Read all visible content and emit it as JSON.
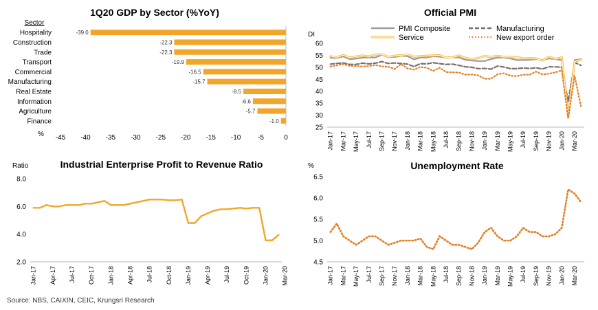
{
  "source": "Source: NBS, CAIXIN, CEIC, Krungsri Research",
  "chart_data": [
    {
      "type": "bar",
      "title": "1Q20 GDP by Sector  (%YoY)",
      "category_header": "Sector",
      "ylabel": "%",
      "categories": [
        "Hospitality",
        "Construction",
        "Trade",
        "Transport",
        "Commercial",
        "Manufacturing",
        "Real Estate",
        "Information",
        "Agriculture",
        "Finance"
      ],
      "values": [
        -39.0,
        -22.3,
        -22.3,
        -19.9,
        -16.5,
        -15.7,
        -8.5,
        -6.6,
        -5.7,
        -1.0
      ],
      "data_labels": [
        "-39.0",
        "-22.3",
        "-22.3",
        "-19.9",
        "-16.5",
        "-15.7",
        "-8.5",
        "-6.6",
        "-5.7",
        "-1.0"
      ],
      "xlim": [
        -45,
        0
      ],
      "xticks": [
        "-45",
        "-40",
        "-35",
        "-30",
        "-25",
        "-20",
        "-15",
        "-10",
        "-5",
        "0"
      ],
      "color": "#f2a629"
    },
    {
      "type": "line",
      "title": "Official PMI",
      "ylabel": "DI",
      "ylim": [
        25,
        60
      ],
      "yticks": [
        "25",
        "30",
        "35",
        "40",
        "45",
        "50",
        "55",
        "60"
      ],
      "xticks": [
        "Jan-17",
        "Mar-17",
        "May-17",
        "Jul-17",
        "Sep-17",
        "Nov-17",
        "Jan-18",
        "Mar-18",
        "May-18",
        "Jul-18",
        "Sep-18",
        "Nov-18",
        "Jan-19",
        "Mar-19",
        "May-19",
        "Jul-19",
        "Sep-19",
        "Nov-19",
        "Jan-20",
        "Mar-20"
      ],
      "legend": "top",
      "series": [
        {
          "name": "PMI Composite",
          "color": "#a39a98",
          "style": "solid",
          "values": [
            53.9,
            53.9,
            54.5,
            53.4,
            53.6,
            54.0,
            54.1,
            54.1,
            55.2,
            54.2,
            54.3,
            54.8,
            54.6,
            53.3,
            54.0,
            54.1,
            54.6,
            54.4,
            54.0,
            54.1,
            54.1,
            53.1,
            52.8,
            52.6,
            52.6,
            53.4,
            54.0,
            54.0,
            53.7,
            53.0,
            53.0,
            53.1,
            53.4,
            53.0,
            53.7,
            53.4,
            53.0,
            28.9,
            53.0,
            53.4
          ]
        },
        {
          "name": "Manufacturing",
          "color": "#7d6d6b",
          "style": "dashed",
          "values": [
            51.3,
            51.6,
            51.8,
            51.2,
            51.2,
            51.7,
            51.4,
            51.7,
            52.4,
            51.6,
            51.8,
            51.6,
            51.3,
            50.3,
            51.5,
            51.4,
            51.9,
            51.5,
            51.2,
            51.3,
            50.8,
            50.2,
            50.0,
            49.4,
            49.5,
            49.2,
            50.5,
            50.1,
            49.4,
            49.4,
            49.7,
            49.5,
            49.8,
            49.3,
            50.2,
            50.2,
            50.0,
            35.7,
            52.0,
            50.8
          ]
        },
        {
          "name": "Service",
          "color": "#f5b938",
          "style": "solid",
          "values": [
            54.6,
            54.2,
            55.1,
            54.0,
            54.5,
            54.9,
            54.5,
            55.3,
            55.4,
            54.3,
            54.8,
            55.0,
            55.3,
            54.4,
            54.6,
            54.8,
            54.9,
            55.0,
            54.0,
            54.2,
            54.9,
            53.9,
            53.4,
            53.8,
            54.7,
            54.3,
            54.8,
            54.3,
            54.3,
            54.2,
            53.7,
            53.8,
            53.7,
            52.8,
            54.4,
            53.5,
            54.1,
            29.6,
            52.3,
            53.2
          ]
        },
        {
          "name": "New export order",
          "color": "#e57c22",
          "style": "dotted",
          "values": [
            50.3,
            50.8,
            51.3,
            50.6,
            50.5,
            50.3,
            50.5,
            50.9,
            50.4,
            50.2,
            49.3,
            51.3,
            49.5,
            49.0,
            50.1,
            49.8,
            48.5,
            49.8,
            48.0,
            47.9,
            47.8,
            46.9,
            47.0,
            46.6,
            45.2,
            45.2,
            47.1,
            47.5,
            46.5,
            46.3,
            46.9,
            46.9,
            48.2,
            47.0,
            47.3,
            47.9,
            48.7,
            28.7,
            46.4,
            33.5
          ]
        }
      ]
    },
    {
      "type": "line",
      "title": "Industrial Enterprise Profit to Revenue Ratio",
      "ylabel": "Ratio",
      "ylim": [
        2.0,
        8.0
      ],
      "yticks": [
        "2.0",
        "4.0",
        "6.0",
        "8.0"
      ],
      "xticks": [
        "Jan-17",
        "Apr-17",
        "Jul-17",
        "Oct-17",
        "Jan-18",
        "Apr-18",
        "Jul-18",
        "Oct-18",
        "Jan-19",
        "Apr-19",
        "Jul-19",
        "Oct-19",
        "Jan-20",
        "Mar-20"
      ],
      "series": [
        {
          "name": "",
          "color": "#f2a629",
          "values": [
            5.9,
            5.9,
            6.1,
            6.0,
            6.0,
            6.1,
            6.1,
            6.1,
            6.2,
            6.2,
            6.3,
            6.4,
            6.1,
            6.1,
            6.1,
            6.2,
            6.3,
            6.4,
            6.5,
            6.5,
            6.5,
            6.45,
            6.45,
            6.5,
            4.8,
            4.8,
            5.3,
            5.5,
            5.7,
            5.8,
            5.8,
            5.85,
            5.9,
            5.85,
            5.9,
            5.9,
            3.55,
            3.55,
            3.95
          ]
        }
      ]
    },
    {
      "type": "line",
      "title": "Unemployment Rate",
      "ylabel": "%",
      "ylim": [
        4.5,
        6.5
      ],
      "yticks": [
        "4.5",
        "5.0",
        "5.5",
        "6.0",
        "6.5"
      ],
      "xticks": [
        "Jan-17",
        "Mar-17",
        "May-17",
        "Jul-17",
        "Sep-17",
        "Nov-17",
        "Jan-18",
        "Mar-18",
        "May-18",
        "Jul-18",
        "Sep-18",
        "Nov-18",
        "Jan-19",
        "Mar-19",
        "May-19",
        "Jul-19",
        "Sep-19",
        "Nov-19",
        "Jan-20",
        "Mar-20"
      ],
      "series": [
        {
          "name": "",
          "color": "#e57c22",
          "style": "dotted",
          "values": [
            5.2,
            5.4,
            5.1,
            5.0,
            4.9,
            5.0,
            5.1,
            5.1,
            5.0,
            4.9,
            4.95,
            5.0,
            5.0,
            5.0,
            5.05,
            4.85,
            4.8,
            5.1,
            5.0,
            4.9,
            4.9,
            4.85,
            4.8,
            4.95,
            5.2,
            5.3,
            5.1,
            5.0,
            5.0,
            5.1,
            5.3,
            5.2,
            5.2,
            5.1,
            5.1,
            5.15,
            5.3,
            6.2,
            6.1,
            5.9
          ]
        }
      ]
    }
  ]
}
